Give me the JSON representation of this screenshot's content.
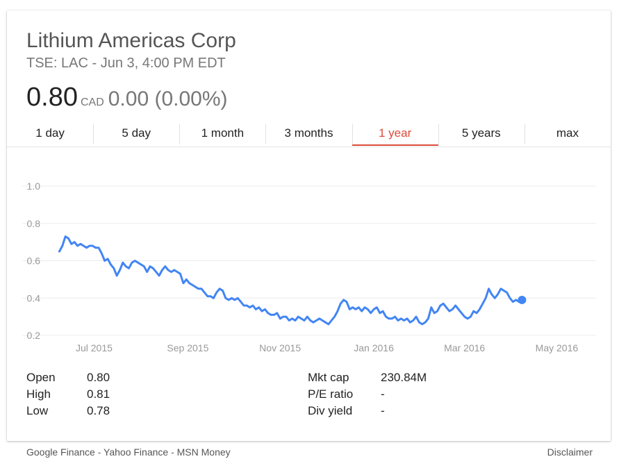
{
  "header": {
    "title": "Lithium Americas Corp",
    "subtitle": "TSE: LAC - Jun 3, 4:00 PM EDT",
    "price": "0.80",
    "currency": "CAD",
    "change": "0.00 (0.00%)"
  },
  "tabs": [
    {
      "label": "1 day",
      "active": false
    },
    {
      "label": "5 day",
      "active": false
    },
    {
      "label": "1 month",
      "active": false
    },
    {
      "label": "3 months",
      "active": false
    },
    {
      "label": "1 year",
      "active": true
    },
    {
      "label": "5 years",
      "active": false
    },
    {
      "label": "max",
      "active": false
    }
  ],
  "colors": {
    "line": "#4285f4",
    "grid": "#ececec",
    "axis_text": "#999999",
    "active_tab": "#dd4b39"
  },
  "chart_data": {
    "type": "line",
    "title": "",
    "xlabel": "",
    "ylabel": "",
    "ylim": [
      0.2,
      1.0
    ],
    "yticks": [
      "1.0",
      "0.8",
      "0.6",
      "0.4",
      "0.2"
    ],
    "ytick_values": [
      1.0,
      0.8,
      0.6,
      0.4,
      0.2
    ],
    "xticks": [
      "Jul 2015",
      "Sep 2015",
      "Nov 2015",
      "Jan 2016",
      "Mar 2016",
      "May 2016"
    ],
    "xtick_days": [
      23,
      85,
      146,
      208,
      268,
      329
    ],
    "x_range_days": [
      -8,
      355
    ],
    "grid": true,
    "last_point_marker": true,
    "series": [
      {
        "name": "",
        "points": [
          [
            0,
            0.65
          ],
          [
            2,
            0.68
          ],
          [
            4,
            0.73
          ],
          [
            6,
            0.72
          ],
          [
            8,
            0.69
          ],
          [
            10,
            0.7
          ],
          [
            12,
            0.68
          ],
          [
            14,
            0.69
          ],
          [
            16,
            0.68
          ],
          [
            18,
            0.67
          ],
          [
            20,
            0.68
          ],
          [
            22,
            0.68
          ],
          [
            24,
            0.67
          ],
          [
            26,
            0.67
          ],
          [
            28,
            0.64
          ],
          [
            30,
            0.6
          ],
          [
            32,
            0.61
          ],
          [
            34,
            0.58
          ],
          [
            36,
            0.56
          ],
          [
            38,
            0.52
          ],
          [
            40,
            0.55
          ],
          [
            42,
            0.59
          ],
          [
            44,
            0.57
          ],
          [
            46,
            0.56
          ],
          [
            48,
            0.59
          ],
          [
            50,
            0.6
          ],
          [
            52,
            0.59
          ],
          [
            54,
            0.58
          ],
          [
            56,
            0.57
          ],
          [
            58,
            0.54
          ],
          [
            60,
            0.57
          ],
          [
            62,
            0.56
          ],
          [
            64,
            0.54
          ],
          [
            66,
            0.52
          ],
          [
            68,
            0.55
          ],
          [
            70,
            0.57
          ],
          [
            72,
            0.55
          ],
          [
            74,
            0.54
          ],
          [
            76,
            0.55
          ],
          [
            78,
            0.54
          ],
          [
            80,
            0.53
          ],
          [
            82,
            0.48
          ],
          [
            84,
            0.5
          ],
          [
            86,
            0.48
          ],
          [
            88,
            0.47
          ],
          [
            90,
            0.46
          ],
          [
            92,
            0.45
          ],
          [
            94,
            0.45
          ],
          [
            96,
            0.43
          ],
          [
            98,
            0.41
          ],
          [
            100,
            0.41
          ],
          [
            102,
            0.4
          ],
          [
            104,
            0.43
          ],
          [
            106,
            0.45
          ],
          [
            108,
            0.44
          ],
          [
            110,
            0.4
          ],
          [
            112,
            0.39
          ],
          [
            114,
            0.4
          ],
          [
            116,
            0.39
          ],
          [
            118,
            0.4
          ],
          [
            120,
            0.38
          ],
          [
            122,
            0.36
          ],
          [
            124,
            0.36
          ],
          [
            126,
            0.35
          ],
          [
            128,
            0.36
          ],
          [
            130,
            0.34
          ],
          [
            132,
            0.35
          ],
          [
            134,
            0.33
          ],
          [
            136,
            0.34
          ],
          [
            138,
            0.32
          ],
          [
            140,
            0.31
          ],
          [
            142,
            0.31
          ],
          [
            144,
            0.32
          ],
          [
            146,
            0.29
          ],
          [
            148,
            0.3
          ],
          [
            150,
            0.3
          ],
          [
            152,
            0.28
          ],
          [
            154,
            0.29
          ],
          [
            156,
            0.28
          ],
          [
            158,
            0.3
          ],
          [
            160,
            0.29
          ],
          [
            162,
            0.28
          ],
          [
            164,
            0.3
          ],
          [
            166,
            0.28
          ],
          [
            168,
            0.27
          ],
          [
            170,
            0.28
          ],
          [
            172,
            0.29
          ],
          [
            174,
            0.28
          ],
          [
            176,
            0.27
          ],
          [
            178,
            0.26
          ],
          [
            180,
            0.28
          ],
          [
            182,
            0.3
          ],
          [
            184,
            0.33
          ],
          [
            186,
            0.37
          ],
          [
            188,
            0.39
          ],
          [
            190,
            0.38
          ],
          [
            192,
            0.34
          ],
          [
            194,
            0.35
          ],
          [
            196,
            0.34
          ],
          [
            198,
            0.35
          ],
          [
            200,
            0.33
          ],
          [
            202,
            0.35
          ],
          [
            204,
            0.34
          ],
          [
            206,
            0.32
          ],
          [
            208,
            0.34
          ],
          [
            210,
            0.35
          ],
          [
            212,
            0.32
          ],
          [
            214,
            0.33
          ],
          [
            216,
            0.3
          ],
          [
            218,
            0.29
          ],
          [
            220,
            0.29
          ],
          [
            222,
            0.3
          ],
          [
            224,
            0.28
          ],
          [
            226,
            0.29
          ],
          [
            228,
            0.28
          ],
          [
            230,
            0.29
          ],
          [
            232,
            0.27
          ],
          [
            234,
            0.28
          ],
          [
            236,
            0.3
          ],
          [
            238,
            0.27
          ],
          [
            240,
            0.26
          ],
          [
            242,
            0.27
          ],
          [
            244,
            0.29
          ],
          [
            246,
            0.35
          ],
          [
            248,
            0.32
          ],
          [
            250,
            0.33
          ],
          [
            252,
            0.36
          ],
          [
            254,
            0.37
          ],
          [
            256,
            0.35
          ],
          [
            258,
            0.33
          ],
          [
            260,
            0.34
          ],
          [
            262,
            0.36
          ],
          [
            264,
            0.34
          ],
          [
            266,
            0.32
          ],
          [
            268,
            0.3
          ],
          [
            270,
            0.29
          ],
          [
            272,
            0.3
          ],
          [
            274,
            0.33
          ],
          [
            276,
            0.32
          ],
          [
            278,
            0.34
          ],
          [
            280,
            0.37
          ],
          [
            282,
            0.4
          ],
          [
            284,
            0.45
          ],
          [
            286,
            0.42
          ],
          [
            288,
            0.4
          ],
          [
            290,
            0.42
          ],
          [
            292,
            0.45
          ],
          [
            294,
            0.44
          ],
          [
            296,
            0.43
          ],
          [
            298,
            0.4
          ],
          [
            300,
            0.38
          ],
          [
            302,
            0.39
          ],
          [
            304,
            0.38
          ],
          [
            306,
            0.39
          ]
        ]
      }
    ]
  },
  "stats": {
    "left": [
      {
        "label": "Open",
        "value": "0.80"
      },
      {
        "label": "High",
        "value": "0.81"
      },
      {
        "label": "Low",
        "value": "0.78"
      }
    ],
    "right": [
      {
        "label": "Mkt cap",
        "value": "230.84M"
      },
      {
        "label": "P/E ratio",
        "value": "-"
      },
      {
        "label": "Div yield",
        "value": "-"
      }
    ]
  },
  "footer": {
    "sources": [
      "Google Finance",
      "Yahoo Finance",
      "MSN Money"
    ],
    "separator": " - ",
    "disclaimer": "Disclaimer"
  }
}
